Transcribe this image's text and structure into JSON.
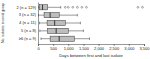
{
  "chart_data": {
    "type": "box",
    "orientation": "horizontal",
    "xlabel": "Days between first and last isolate",
    "ylabel": "No. isolates in serial group",
    "categories": [
      "2 (n = 129)",
      "3 (n = 32)",
      "4 (n = 11)",
      "5 (n = 8)",
      "≥6 (n = 9)"
    ],
    "boxes": [
      {
        "min": 0,
        "q1": 50,
        "median": 150,
        "q3": 320,
        "max": 750,
        "outliers": [
          900,
          1000,
          1150,
          1300,
          1450,
          1600,
          3300,
          3450
        ]
      },
      {
        "min": 10,
        "q1": 200,
        "median": 400,
        "q3": 700,
        "max": 1300,
        "outliers": []
      },
      {
        "min": 50,
        "q1": 300,
        "median": 550,
        "q3": 900,
        "max": 1400,
        "outliers": []
      },
      {
        "min": 60,
        "q1": 320,
        "median": 600,
        "q3": 1000,
        "max": 1500,
        "outliers": []
      },
      {
        "min": 100,
        "q1": 400,
        "median": 700,
        "q3": 1200,
        "max": 1700,
        "outliers": []
      }
    ],
    "color": "#bdbdbd",
    "xlim": [
      0,
      3500
    ],
    "xticks": [
      0,
      500,
      {
        "value": 1000,
        "label": "1,000"
      },
      {
        "value": 1500,
        "label": "1,500"
      },
      {
        "value": 2000,
        "label": "2,000"
      },
      {
        "value": 2500,
        "label": "2,500"
      },
      {
        "value": 3000,
        "label": "3,000"
      },
      {
        "value": 3500,
        "label": "3,500"
      }
    ]
  }
}
